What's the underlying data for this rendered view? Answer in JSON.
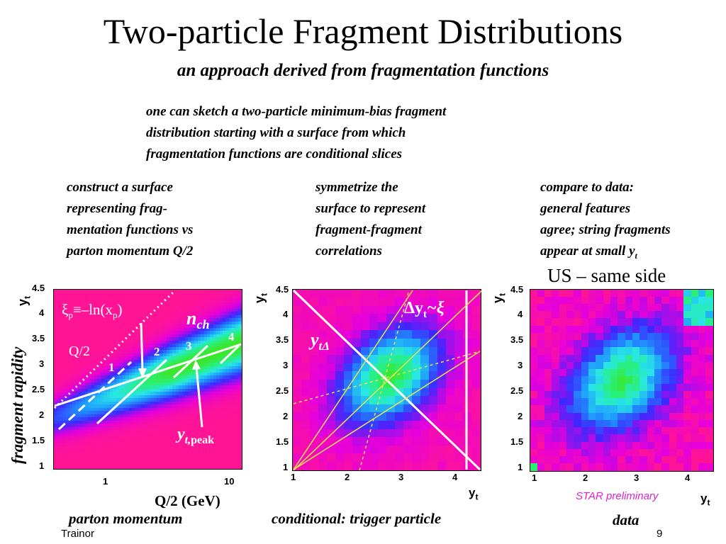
{
  "title": "Two-particle Fragment Distributions",
  "subtitle": "an approach derived from fragmentation functions",
  "intro": [
    "one can sketch a two-particle minimum-bias fragment",
    "distribution starting with a surface from which",
    "fragmentation functions are conditional slices"
  ],
  "col1": [
    "construct a surface",
    "representing frag-",
    "mentation functions vs",
    "parton momentum Q/2"
  ],
  "col2": [
    "symmetrize the",
    "surface to represent",
    "fragment-fragment",
    "correlations"
  ],
  "col3_lines": [
    "compare to data:",
    "general features",
    "agree; string fragments"
  ],
  "col3_last": "appear at small y",
  "col3_sub": "t",
  "us_label": "US – same side",
  "plot1": {
    "ylabel": "y",
    "ylabel_sub": "t",
    "y_ticks": [
      "4.5",
      "4",
      "3.5",
      "3",
      "2.5",
      "2",
      "1.5",
      "1"
    ],
    "x_ticks": [
      "1",
      "10"
    ],
    "fraglab": "fragment rapidity",
    "xlabel": "Q/2 (GeV)",
    "xi_label": "ξ",
    "xi_sub": "p",
    "xi_rest": "≡–ln(x",
    "xi_sub2": "p",
    "xi_end": ")",
    "nch": "n",
    "nch_sub": "ch",
    "q2": "Q/2",
    "n1": "1",
    "n2": "2",
    "n3": "3",
    "n4": "4",
    "ypeak": "y",
    "ypeak_sub": "t,",
    "ypeak_sub2": "peak"
  },
  "plot2": {
    "ylabel": "y",
    "ylabel_sub": "t",
    "y_ticks": [
      "4.5",
      "4",
      "3.5",
      "3",
      "2.5",
      "2",
      "1.5",
      "1"
    ],
    "x_ticks": [
      "1",
      "2",
      "3",
      "4"
    ],
    "xlabel": "y",
    "xlabel_sub": "t",
    "ytd": "y",
    "ytd_sub": "tΔ",
    "dyt": "Δy",
    "dyt_sub": "t",
    "dyt_end": "~ξ"
  },
  "plot3": {
    "ylabel": "y",
    "ylabel_sub": "t",
    "y_ticks": [
      "4.5",
      "4",
      "3.5",
      "3",
      "2.5",
      "2",
      "1.5",
      "1"
    ],
    "x_ticks": [
      "1",
      "2",
      "3",
      "4"
    ],
    "xlabel": "y",
    "xlabel_sub": "t"
  },
  "cap1": "parton momentum",
  "cap2": "conditional: trigger particle",
  "cap3": "data",
  "star": "STAR preliminary",
  "footer_author": "Trainor",
  "page_number": "9"
}
